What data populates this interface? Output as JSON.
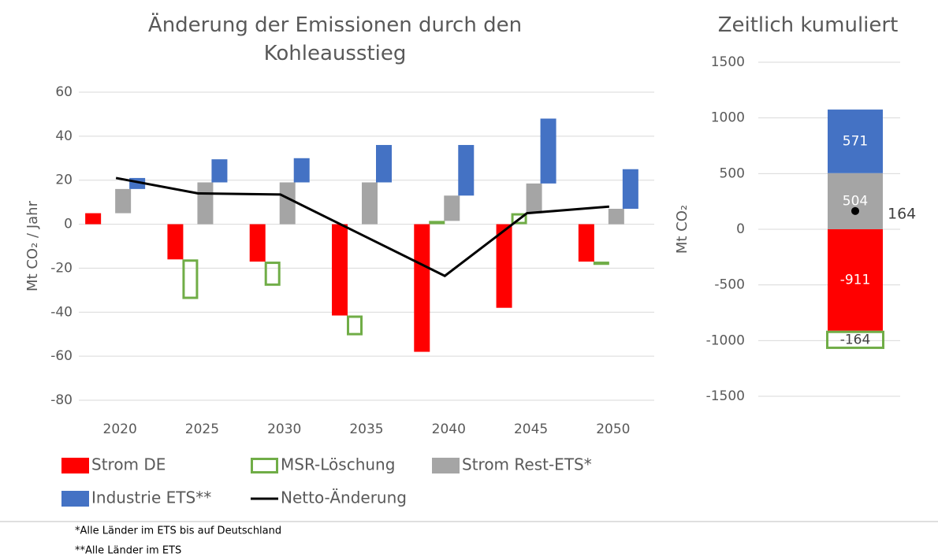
{
  "chart_data": [
    {
      "type": "bar",
      "stacked": true,
      "title": "Änderung der Emissionen durch den Kohleausstieg",
      "y_label": "Mt CO₂ / Jahr",
      "categories": [
        "2020",
        "2025",
        "2030",
        "2035",
        "2040",
        "2045",
        "2050"
      ],
      "ylim": [
        -80,
        60
      ],
      "yticks": [
        -80,
        -60,
        -40,
        -20,
        0,
        20,
        40,
        60
      ],
      "grid": true,
      "legend": "bottom",
      "series": [
        {
          "name": "Strom DE",
          "color": "#ff0000",
          "style": "fill",
          "values": [
            5,
            -16,
            -17,
            -41.5,
            -58,
            -38,
            -17
          ]
        },
        {
          "name": "MSR-Löschung",
          "color": "#70ad47",
          "style": "outline",
          "values": [
            0,
            -18,
            -11,
            -9,
            1.5,
            5,
            -1.5
          ]
        },
        {
          "name": "Strom Rest-ETS*",
          "color": "#a5a5a5",
          "style": "fill",
          "values": [
            11,
            19,
            19,
            19,
            11.5,
            13.5,
            7
          ]
        },
        {
          "name": "Industrie ETS**",
          "color": "#4472c4",
          "style": "fill",
          "values": [
            5,
            10.5,
            11,
            17,
            23,
            29.5,
            18
          ]
        },
        {
          "name": "Netto-Änderung",
          "color": "#000000",
          "style": "line",
          "values": [
            21,
            14,
            13.5,
            -5,
            -23.5,
            5,
            8
          ]
        }
      ]
    },
    {
      "type": "bar",
      "stacked": true,
      "title": "Zeitlich kumuliert",
      "y_label": "Mt CO₂",
      "categories": [
        null
      ],
      "ylim": [
        -1500,
        1500
      ],
      "yticks": [
        -1500,
        -1000,
        -500,
        0,
        500,
        1000,
        1500
      ],
      "grid": true,
      "data_labels": true,
      "series": [
        {
          "color": "#ff0000",
          "style": "fill",
          "values": [
            -911
          ]
        },
        {
          "color": "#70ad47",
          "style": "outline",
          "values": [
            -164
          ]
        },
        {
          "color": "#a5a5a5",
          "style": "fill",
          "values": [
            504
          ]
        },
        {
          "color": "#4472c4",
          "style": "fill",
          "values": [
            571
          ]
        },
        {
          "color": "#000000",
          "style": "dot",
          "values": [
            164
          ]
        }
      ]
    }
  ],
  "footnotes": [
    "*Alle Länder im ETS bis auf Deutschland",
    "**Alle Länder im ETS"
  ]
}
